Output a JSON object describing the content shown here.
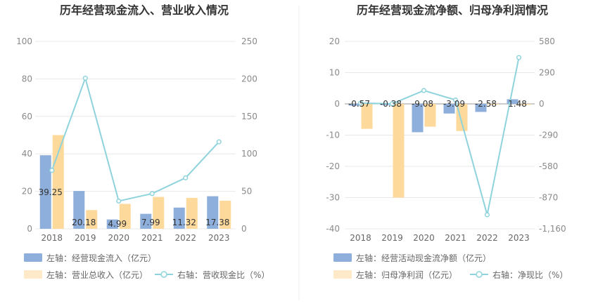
{
  "chart_data": [
    {
      "type": "bar",
      "title": "历年经营现金流入、营业收入情况",
      "categories": [
        "2018",
        "2019",
        "2020",
        "2021",
        "2022",
        "2023"
      ],
      "left_axis": {
        "ylim": [
          0,
          100
        ],
        "ticks": [
          "0",
          "20",
          "40",
          "60",
          "80",
          "100"
        ]
      },
      "right_axis": {
        "ylim": [
          0,
          250
        ],
        "ticks": [
          "0",
          "50",
          "100",
          "150",
          "200",
          "250"
        ]
      },
      "series": [
        {
          "name": "左轴：经营现金流入（亿元）",
          "type": "bar",
          "axis": "left",
          "color": "#8eaedb",
          "values": [
            39.25,
            20.18,
            4.99,
            7.99,
            11.32,
            17.38
          ],
          "labels": [
            "39.25",
            "20.18",
            "4.99",
            "7.99",
            "11.32",
            "17.38"
          ]
        },
        {
          "name": "左轴：营业总收入（亿元）",
          "type": "bar",
          "axis": "left",
          "color": "#fdd99b",
          "values": [
            50,
            10,
            13.3,
            17,
            16.5,
            15
          ]
        },
        {
          "name": "右轴：营收现金比（%）",
          "type": "line",
          "axis": "right",
          "color": "#8fd3dc",
          "values": [
            78,
            201,
            37,
            47,
            68,
            116
          ]
        }
      ]
    },
    {
      "type": "bar",
      "title": "历年经营现金流净额、归母净利润情况",
      "categories": [
        "2018",
        "2019",
        "2020",
        "2021",
        "2022",
        "2023"
      ],
      "left_axis": {
        "ylim": [
          -40,
          20
        ],
        "ticks": [
          "-40",
          "-30",
          "-20",
          "-10",
          "0",
          "10",
          "20"
        ]
      },
      "right_axis": {
        "ylim": [
          -1160,
          580
        ],
        "ticks": [
          "-1,160",
          "-870",
          "-580",
          "-290",
          "0",
          "290",
          "580"
        ]
      },
      "series": [
        {
          "name": "左轴：经营活动现金流净额（亿元）",
          "type": "bar",
          "axis": "left",
          "color": "#8eaedb",
          "values": [
            -0.57,
            -0.38,
            -9.08,
            -3.09,
            -2.58,
            1.48
          ],
          "labels": [
            "-0.57",
            "-0.38",
            "-9.08",
            "-3.09",
            "-2.58",
            "1.48"
          ]
        },
        {
          "name": "左轴：归母净利润（亿元）",
          "type": "bar",
          "axis": "left",
          "color": "#fdd99b",
          "values": [
            -8,
            -30,
            -7.3,
            -8.7,
            -0.2,
            -0.3
          ]
        },
        {
          "name": "右轴：净现比（%）",
          "type": "line",
          "axis": "right",
          "color": "#8fd3dc",
          "values": [
            7,
            1,
            124,
            36,
            -1030,
            430
          ]
        }
      ]
    }
  ]
}
